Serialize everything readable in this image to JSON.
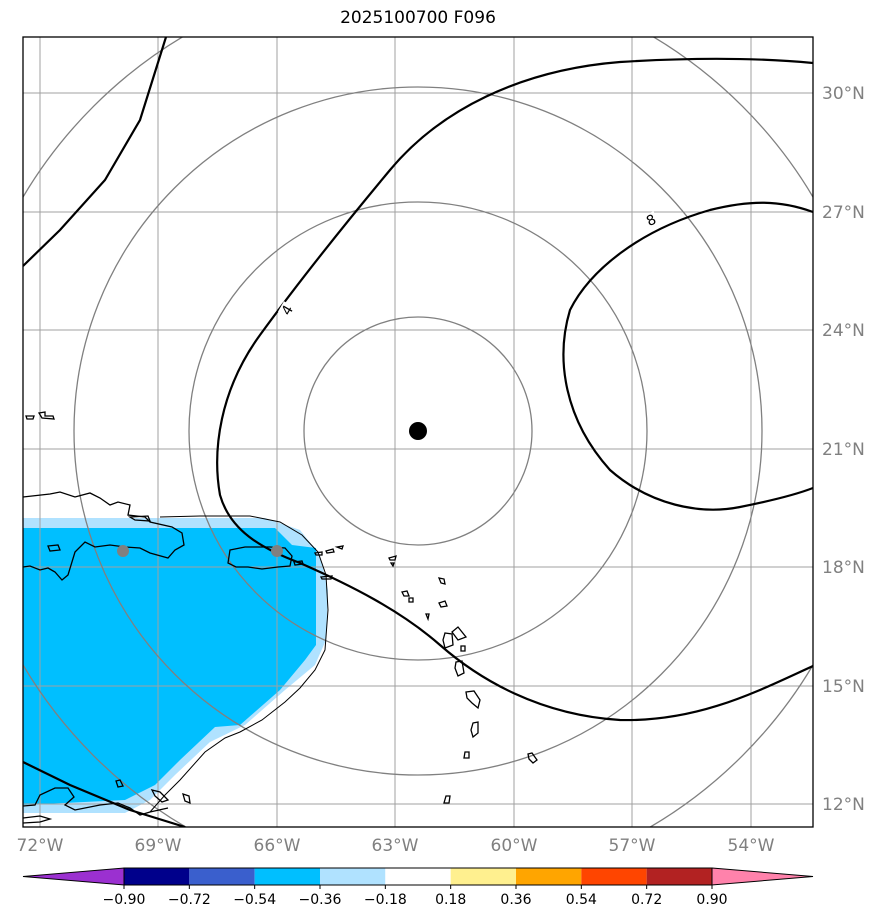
{
  "title": "2025100700 F096",
  "lon_ticks": [
    "72°W",
    "69°W",
    "66°W",
    "63°W",
    "60°W",
    "57°W",
    "54°W"
  ],
  "lat_ticks": [
    "30°N",
    "27°N",
    "24°N",
    "21°N",
    "18°N",
    "15°N",
    "12°N"
  ],
  "contour_labels": [
    "4",
    "8"
  ],
  "colorbar": {
    "ticks": [
      "−0.90",
      "−0.72",
      "−0.54",
      "−0.36",
      "−0.18",
      "0.18",
      "0.36",
      "0.54",
      "0.72",
      "0.90"
    ],
    "colors": [
      "#9b30d0",
      "#00008b",
      "#3a5fcd",
      "#00bfff",
      "#b0e2ff",
      "#ffffff",
      "#fff08f",
      "#ffa500",
      "#ff4500",
      "#b22222",
      "#ff82ab"
    ]
  },
  "storm_center": {
    "lat": 21.5,
    "lon": "62.5°W"
  },
  "colors": {
    "grid": "#a0a0a0",
    "range_rings": "#808080",
    "shading_dark": "#00bfff",
    "shading_light": "#b0e2ff"
  }
}
